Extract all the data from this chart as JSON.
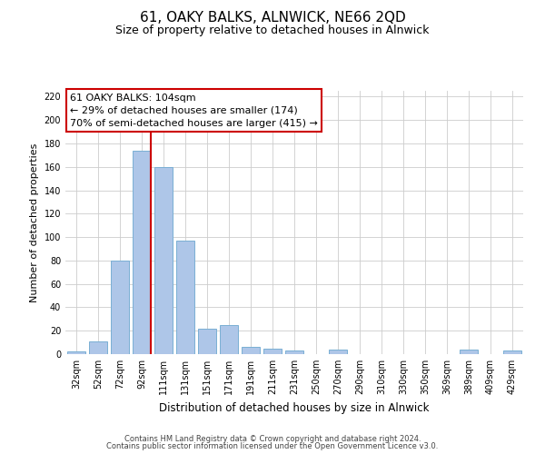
{
  "title": "61, OAKY BALKS, ALNWICK, NE66 2QD",
  "subtitle": "Size of property relative to detached houses in Alnwick",
  "xlabel": "Distribution of detached houses by size in Alnwick",
  "ylabel": "Number of detached properties",
  "categories": [
    "32sqm",
    "52sqm",
    "72sqm",
    "92sqm",
    "111sqm",
    "131sqm",
    "151sqm",
    "171sqm",
    "191sqm",
    "211sqm",
    "231sqm",
    "250sqm",
    "270sqm",
    "290sqm",
    "310sqm",
    "330sqm",
    "350sqm",
    "369sqm",
    "389sqm",
    "409sqm",
    "429sqm"
  ],
  "values": [
    2,
    11,
    80,
    174,
    160,
    97,
    22,
    25,
    6,
    5,
    3,
    0,
    4,
    0,
    0,
    0,
    0,
    0,
    4,
    0,
    3
  ],
  "bar_color": "#aec6e8",
  "bar_edgecolor": "#7aafd4",
  "property_line_color": "#cc0000",
  "annotation_text_line1": "61 OAKY BALKS: 104sqm",
  "annotation_text_line2": "← 29% of detached houses are smaller (174)",
  "annotation_text_line3": "70% of semi-detached houses are larger (415) →",
  "annotation_box_edgecolor": "#cc0000",
  "ylim": [
    0,
    225
  ],
  "yticks": [
    0,
    20,
    40,
    60,
    80,
    100,
    120,
    140,
    160,
    180,
    200,
    220
  ],
  "footer_line1": "Contains HM Land Registry data © Crown copyright and database right 2024.",
  "footer_line2": "Contains public sector information licensed under the Open Government Licence v3.0.",
  "background_color": "#ffffff",
  "grid_color": "#cccccc",
  "title_fontsize": 11,
  "subtitle_fontsize": 9,
  "ylabel_fontsize": 8,
  "xlabel_fontsize": 8.5,
  "tick_fontsize": 7,
  "annotation_fontsize": 8,
  "footer_fontsize": 6
}
